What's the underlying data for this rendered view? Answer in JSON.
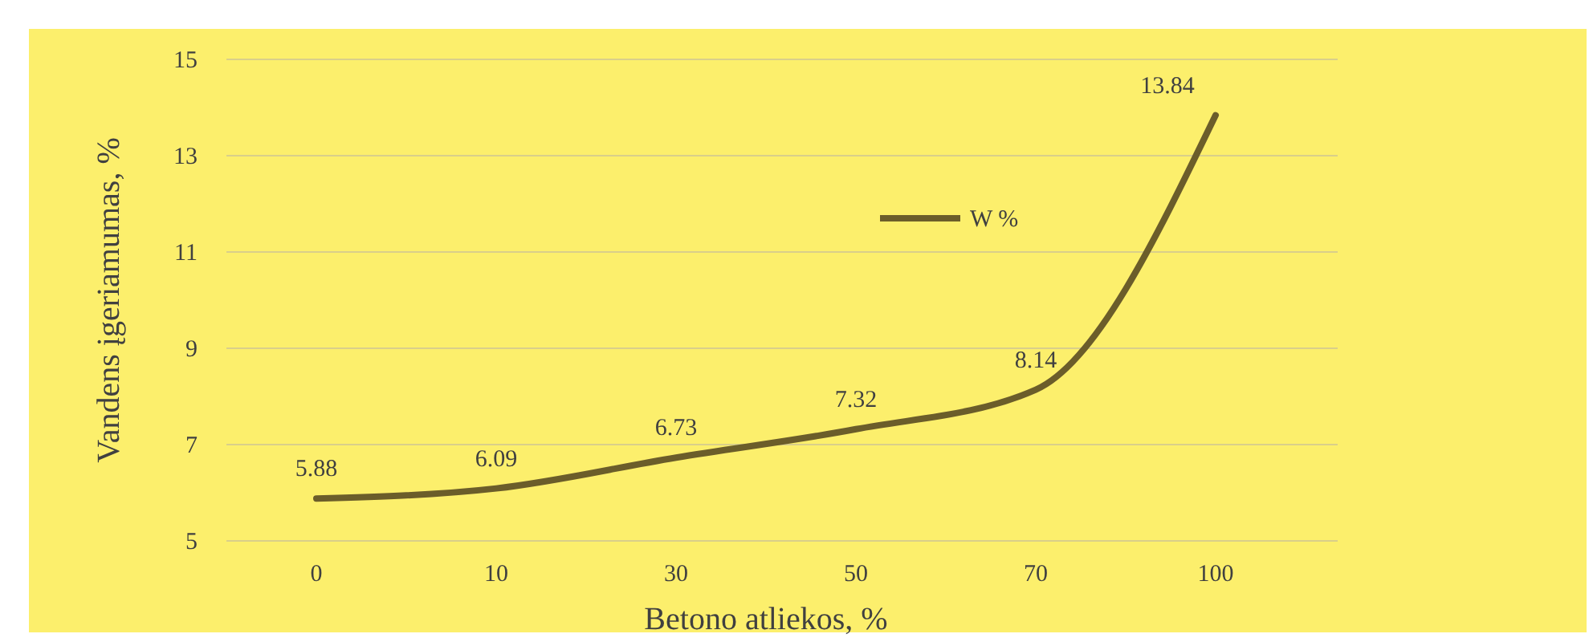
{
  "chart_data": {
    "type": "line",
    "xlabel": "Betono atliekos, %",
    "ylabel": "Vandens įgeriamumas, %",
    "categories": [
      "0",
      "10",
      "30",
      "50",
      "70",
      "100"
    ],
    "series": [
      {
        "name": "W %",
        "color": "#6b5d2a",
        "values": [
          5.88,
          6.09,
          6.73,
          7.32,
          8.14,
          13.84
        ]
      }
    ],
    "ylim": [
      5,
      15
    ],
    "yticks": [
      5,
      7,
      9,
      11,
      13,
      15
    ],
    "grid": "y",
    "legend": "top",
    "data_labels": true,
    "line_style": "solid"
  }
}
